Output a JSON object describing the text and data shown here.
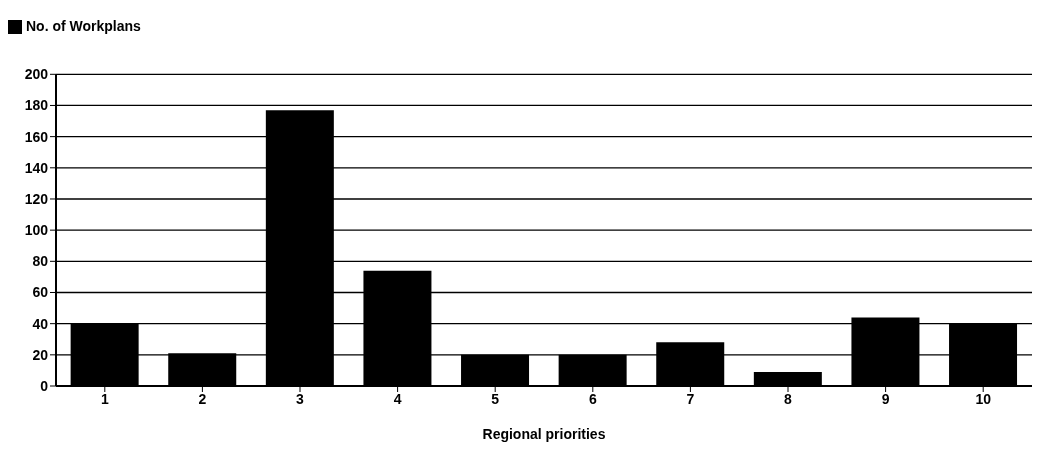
{
  "chart_data": {
    "type": "bar",
    "xlabel": "Regional priorities",
    "categories": [
      "1",
      "2",
      "3",
      "4",
      "5",
      "6",
      "7",
      "8",
      "9",
      "10"
    ],
    "series": [
      {
        "name": "No. of Workplans",
        "color": "#000000",
        "values": [
          40,
          21,
          177,
          74,
          20,
          20,
          28,
          9,
          44,
          40
        ]
      }
    ],
    "ylim": [
      0,
      200
    ],
    "yticks": [
      0,
      20,
      40,
      60,
      80,
      100,
      120,
      140,
      160,
      180,
      200
    ],
    "grid": "y",
    "legend": "top left"
  }
}
